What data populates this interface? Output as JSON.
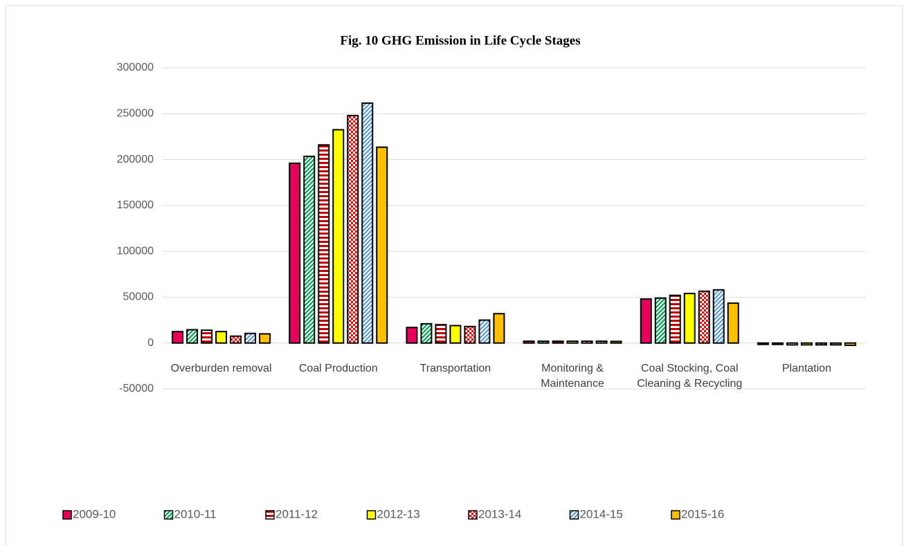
{
  "chart_data": {
    "type": "bar",
    "title": "Fig. 10   GHG Emission in Life Cycle Stages",
    "categories": [
      "Overburden removal",
      "Coal Production",
      "Transportation",
      "Monitoring & Maintenance",
      "Coal Stocking, Coal Cleaning & Recycling",
      "Plantation"
    ],
    "series": [
      {
        "name": "2009-10",
        "color": "#e8005a",
        "pattern": "solid",
        "values": [
          12500,
          196000,
          17000,
          2000,
          48000,
          -1500
        ]
      },
      {
        "name": "2010-11",
        "color": "#00a050",
        "pattern": "diagonal",
        "values": [
          14500,
          203500,
          21000,
          2000,
          49000,
          -1500
        ]
      },
      {
        "name": "2011-12",
        "color": "#c00000",
        "pattern": "horizontal",
        "values": [
          14000,
          216000,
          20000,
          2000,
          52000,
          -2000
        ]
      },
      {
        "name": "2012-13",
        "color": "#ffff00",
        "pattern": "solid",
        "values": [
          12500,
          232500,
          19000,
          2000,
          54000,
          -2000
        ]
      },
      {
        "name": "2013-14",
        "color": "#ff0000",
        "pattern": "checker",
        "values": [
          7500,
          248000,
          18000,
          2000,
          56500,
          -2000
        ]
      },
      {
        "name": "2014-15",
        "color": "#5b9bd5",
        "pattern": "diagonal",
        "values": [
          10500,
          261500,
          25000,
          2000,
          58000,
          -2000
        ]
      },
      {
        "name": "2015-16",
        "color": "#ffc000",
        "pattern": "solid",
        "values": [
          10000,
          213500,
          32000,
          1800,
          43500,
          -2500
        ]
      }
    ],
    "ylim": [
      -50000,
      300000
    ],
    "yticks": [
      -50000,
      0,
      50000,
      100000,
      150000,
      200000,
      250000,
      300000
    ],
    "grid": true,
    "legend": "bottom"
  }
}
